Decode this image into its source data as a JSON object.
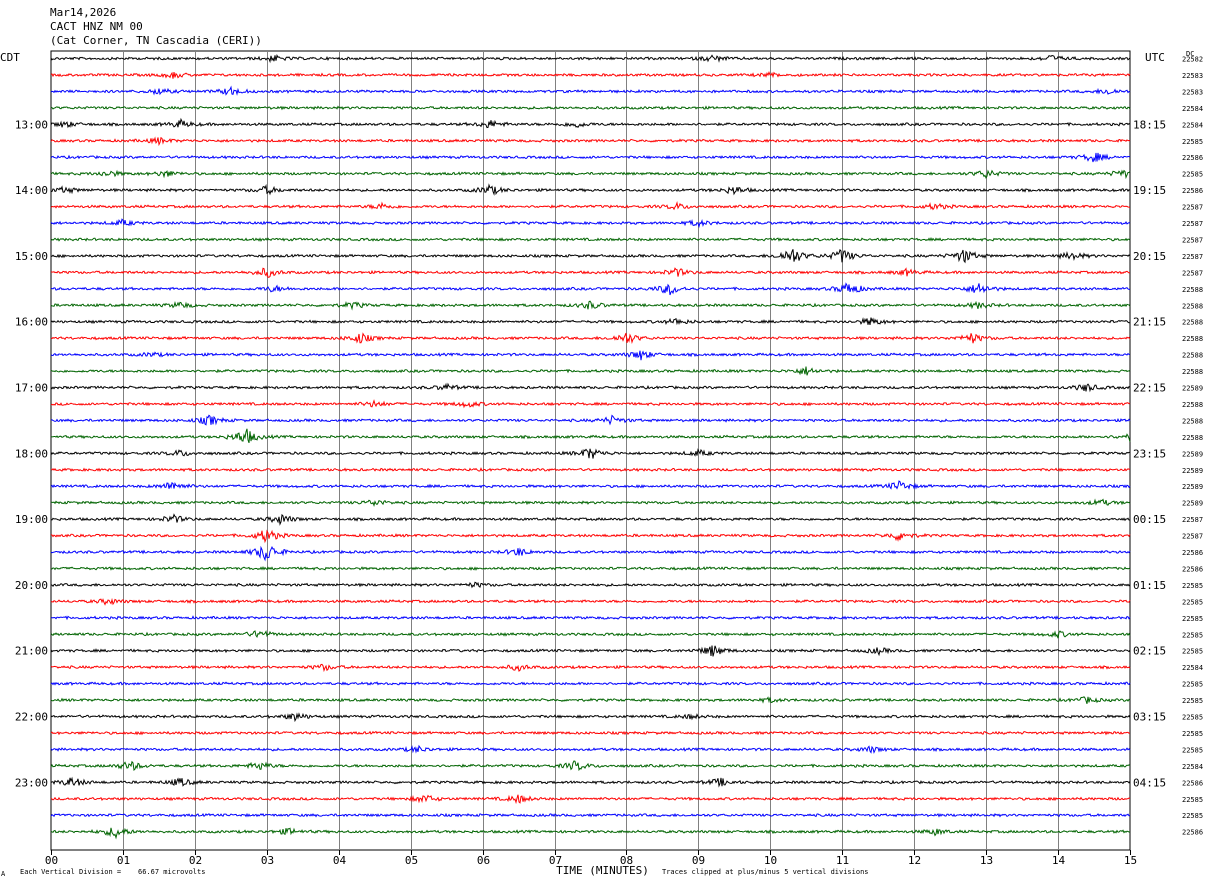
{
  "header": {
    "date": "Mar14,2026",
    "station": "CACT HNZ NM 00",
    "location": "(Cat Corner, TN Cascadia (CERI))"
  },
  "left_tz": "CDT",
  "right_tz": "UTC",
  "dc_label": "DC",
  "footer": {
    "scale": "Each Vertical Division =    66.67 microvolts",
    "clip_note": "Traces clipped at plus/minus 5 vertical divisions",
    "corner_mark": "A"
  },
  "colors": {
    "black": "#000000",
    "red": "#ff0000",
    "blue": "#0000ff",
    "green": "#006400",
    "grid": "#808080"
  },
  "chart_data": {
    "type": "line",
    "title": "",
    "xlabel": "TIME (MINUTES)",
    "ylabel": "",
    "xlim": [
      0,
      15
    ],
    "x_ticks": [
      "00",
      "01",
      "02",
      "03",
      "04",
      "05",
      "06",
      "07",
      "08",
      "09",
      "10",
      "11",
      "12",
      "13",
      "14",
      "15"
    ],
    "rows_per_hour": 4,
    "row_minutes": 15,
    "trace_color_cycle": [
      "black",
      "red",
      "blue",
      "green"
    ],
    "left_hour_labels": [
      "13:00",
      "14:00",
      "15:00",
      "16:00",
      "17:00",
      "18:00",
      "19:00",
      "20:00",
      "21:00",
      "22:00",
      "23:00"
    ],
    "right_hour_labels": [
      "18:15",
      "19:15",
      "20:15",
      "21:15",
      "22:15",
      "23:15",
      "00:15",
      "01:15",
      "02:15",
      "03:15",
      "04:15"
    ],
    "label_row_offset": 4,
    "dc_offsets": [
      "22582",
      "22583",
      "22583",
      "22584",
      "22584",
      "22585",
      "22586",
      "22585",
      "22586",
      "22587",
      "22587",
      "22587",
      "22587",
      "22587",
      "22588",
      "22588",
      "22588",
      "22588",
      "22588",
      "22588",
      "22589",
      "22588",
      "22588",
      "22588",
      "22589",
      "22589",
      "22589",
      "22589",
      "22587",
      "22587",
      "22586",
      "22586",
      "22585",
      "22585",
      "22585",
      "22585",
      "22585",
      "22584",
      "22585",
      "22585",
      "22585",
      "22585",
      "22585",
      "22584",
      "22586",
      "22585",
      "22585",
      "22586"
    ],
    "events": [
      {
        "row": 0,
        "minute": 3.1,
        "amp": 3
      },
      {
        "row": 0,
        "minute": 9.2,
        "amp": 3
      },
      {
        "row": 0,
        "minute": 13.9,
        "amp": 3
      },
      {
        "row": 1,
        "minute": 1.7,
        "amp": 3
      },
      {
        "row": 1,
        "minute": 10.0,
        "amp": 2
      },
      {
        "row": 2,
        "minute": 1.5,
        "amp": 3
      },
      {
        "row": 2,
        "minute": 2.5,
        "amp": 4
      },
      {
        "row": 2,
        "minute": 14.7,
        "amp": 3
      },
      {
        "row": 4,
        "minute": 0.2,
        "amp": 3
      },
      {
        "row": 4,
        "minute": 1.8,
        "amp": 4
      },
      {
        "row": 4,
        "minute": 6.1,
        "amp": 4
      },
      {
        "row": 4,
        "minute": 7.3,
        "amp": 3
      },
      {
        "row": 5,
        "minute": 1.5,
        "amp": 3
      },
      {
        "row": 6,
        "minute": 14.5,
        "amp": 5
      },
      {
        "row": 7,
        "minute": 0.8,
        "amp": 3
      },
      {
        "row": 7,
        "minute": 1.6,
        "amp": 3
      },
      {
        "row": 7,
        "minute": 13.0,
        "amp": 4
      },
      {
        "row": 7,
        "minute": 14.9,
        "amp": 4
      },
      {
        "row": 8,
        "minute": 0.2,
        "amp": 3
      },
      {
        "row": 8,
        "minute": 3.0,
        "amp": 4
      },
      {
        "row": 8,
        "minute": 6.1,
        "amp": 5
      },
      {
        "row": 8,
        "minute": 9.5,
        "amp": 4
      },
      {
        "row": 9,
        "minute": 4.6,
        "amp": 3
      },
      {
        "row": 9,
        "minute": 8.7,
        "amp": 3
      },
      {
        "row": 9,
        "minute": 12.3,
        "amp": 3
      },
      {
        "row": 10,
        "minute": 1.0,
        "amp": 3
      },
      {
        "row": 10,
        "minute": 9.0,
        "amp": 3
      },
      {
        "row": 12,
        "minute": 10.3,
        "amp": 9
      },
      {
        "row": 12,
        "minute": 11.0,
        "amp": 7
      },
      {
        "row": 12,
        "minute": 12.7,
        "amp": 7
      },
      {
        "row": 12,
        "minute": 14.2,
        "amp": 4
      },
      {
        "row": 13,
        "minute": 3.0,
        "amp": 5
      },
      {
        "row": 13,
        "minute": 8.7,
        "amp": 4
      },
      {
        "row": 13,
        "minute": 11.9,
        "amp": 3
      },
      {
        "row": 14,
        "minute": 8.6,
        "amp": 6
      },
      {
        "row": 14,
        "minute": 11.1,
        "amp": 7
      },
      {
        "row": 14,
        "minute": 12.9,
        "amp": 6
      },
      {
        "row": 14,
        "minute": 3.1,
        "amp": 3
      },
      {
        "row": 15,
        "minute": 1.8,
        "amp": 3
      },
      {
        "row": 15,
        "minute": 4.2,
        "amp": 3
      },
      {
        "row": 15,
        "minute": 7.5,
        "amp": 4
      },
      {
        "row": 15,
        "minute": 12.9,
        "amp": 3
      },
      {
        "row": 16,
        "minute": 8.7,
        "amp": 3
      },
      {
        "row": 16,
        "minute": 11.4,
        "amp": 4
      },
      {
        "row": 17,
        "minute": 4.3,
        "amp": 5
      },
      {
        "row": 17,
        "minute": 8.0,
        "amp": 6
      },
      {
        "row": 17,
        "minute": 12.8,
        "amp": 5
      },
      {
        "row": 18,
        "minute": 8.2,
        "amp": 5
      },
      {
        "row": 18,
        "minute": 1.4,
        "amp": 2
      },
      {
        "row": 19,
        "minute": 10.5,
        "amp": 4
      },
      {
        "row": 20,
        "minute": 5.5,
        "amp": 3
      },
      {
        "row": 20,
        "minute": 14.4,
        "amp": 4
      },
      {
        "row": 21,
        "minute": 4.5,
        "amp": 3
      },
      {
        "row": 21,
        "minute": 5.8,
        "amp": 3
      },
      {
        "row": 22,
        "minute": 2.2,
        "amp": 5
      },
      {
        "row": 22,
        "minute": 7.8,
        "amp": 4
      },
      {
        "row": 23,
        "minute": 2.7,
        "amp": 9
      },
      {
        "row": 23,
        "minute": 15.0,
        "amp": 4
      },
      {
        "row": 24,
        "minute": 1.8,
        "amp": 3
      },
      {
        "row": 24,
        "minute": 7.5,
        "amp": 6
      },
      {
        "row": 24,
        "minute": 9.0,
        "amp": 3
      },
      {
        "row": 26,
        "minute": 1.7,
        "amp": 5
      },
      {
        "row": 26,
        "minute": 11.8,
        "amp": 5
      },
      {
        "row": 27,
        "minute": 4.5,
        "amp": 3
      },
      {
        "row": 27,
        "minute": 14.6,
        "amp": 3
      },
      {
        "row": 28,
        "minute": 1.7,
        "amp": 4
      },
      {
        "row": 28,
        "minute": 3.2,
        "amp": 5
      },
      {
        "row": 29,
        "minute": 3.0,
        "amp": 7
      },
      {
        "row": 29,
        "minute": 11.8,
        "amp": 5
      },
      {
        "row": 30,
        "minute": 3.0,
        "amp": 10
      },
      {
        "row": 30,
        "minute": 6.5,
        "amp": 4
      },
      {
        "row": 32,
        "minute": 5.9,
        "amp": 2
      },
      {
        "row": 33,
        "minute": 0.8,
        "amp": 3
      },
      {
        "row": 35,
        "minute": 2.9,
        "amp": 4
      },
      {
        "row": 35,
        "minute": 14.0,
        "amp": 3
      },
      {
        "row": 36,
        "minute": 9.2,
        "amp": 6
      },
      {
        "row": 36,
        "minute": 11.5,
        "amp": 3
      },
      {
        "row": 37,
        "minute": 3.8,
        "amp": 3
      },
      {
        "row": 37,
        "minute": 6.5,
        "amp": 3
      },
      {
        "row": 39,
        "minute": 10.0,
        "amp": 2
      },
      {
        "row": 39,
        "minute": 14.4,
        "amp": 3
      },
      {
        "row": 40,
        "minute": 3.4,
        "amp": 4
      },
      {
        "row": 40,
        "minute": 8.9,
        "amp": 2
      },
      {
        "row": 42,
        "minute": 5.1,
        "amp": 3
      },
      {
        "row": 42,
        "minute": 11.4,
        "amp": 3
      },
      {
        "row": 43,
        "minute": 1.1,
        "amp": 5
      },
      {
        "row": 43,
        "minute": 2.9,
        "amp": 4
      },
      {
        "row": 43,
        "minute": 7.3,
        "amp": 5
      },
      {
        "row": 44,
        "minute": 0.3,
        "amp": 5
      },
      {
        "row": 44,
        "minute": 1.8,
        "amp": 4
      },
      {
        "row": 44,
        "minute": 9.3,
        "amp": 4
      },
      {
        "row": 45,
        "minute": 5.2,
        "amp": 4
      },
      {
        "row": 45,
        "minute": 6.5,
        "amp": 4
      },
      {
        "row": 47,
        "minute": 0.9,
        "amp": 6
      },
      {
        "row": 47,
        "minute": 3.3,
        "amp": 3
      },
      {
        "row": 47,
        "minute": 12.3,
        "amp": 3
      }
    ]
  }
}
